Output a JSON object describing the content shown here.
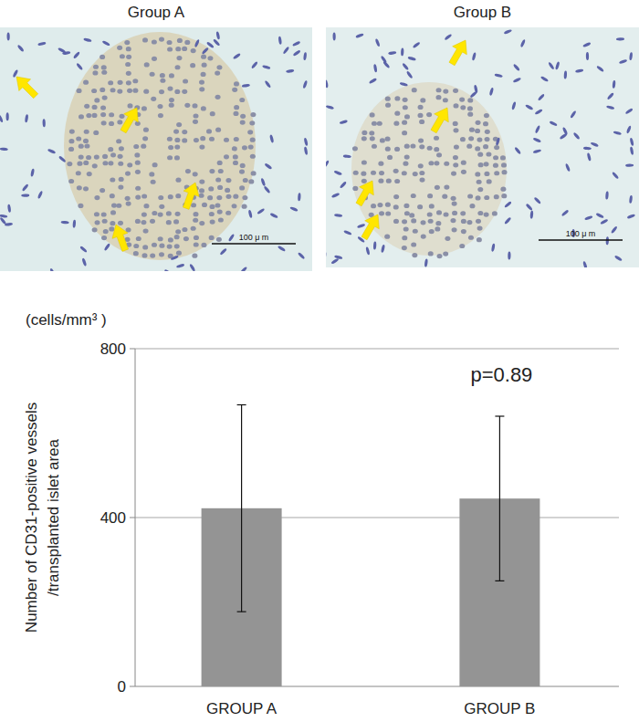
{
  "images": {
    "panels": [
      {
        "title": "Group A",
        "scale_bar": "100 μ m"
      },
      {
        "title": "Group B",
        "scale_bar": "100 μ m"
      }
    ]
  },
  "chart_data": {
    "type": "bar",
    "unit": "(cells/mm³ )",
    "y_label": [
      "Number of CD31-positive vessels",
      "/transplanted islet area"
    ],
    "categories": [
      "GROUP A",
      "GROUP B"
    ],
    "values": [
      422,
      445
    ],
    "errors": [
      245,
      195
    ],
    "color": "#949494",
    "ylim": [
      0,
      800
    ],
    "yticks": [
      0,
      400,
      800
    ],
    "grid": true,
    "annotations": [
      "p=0.89"
    ]
  }
}
